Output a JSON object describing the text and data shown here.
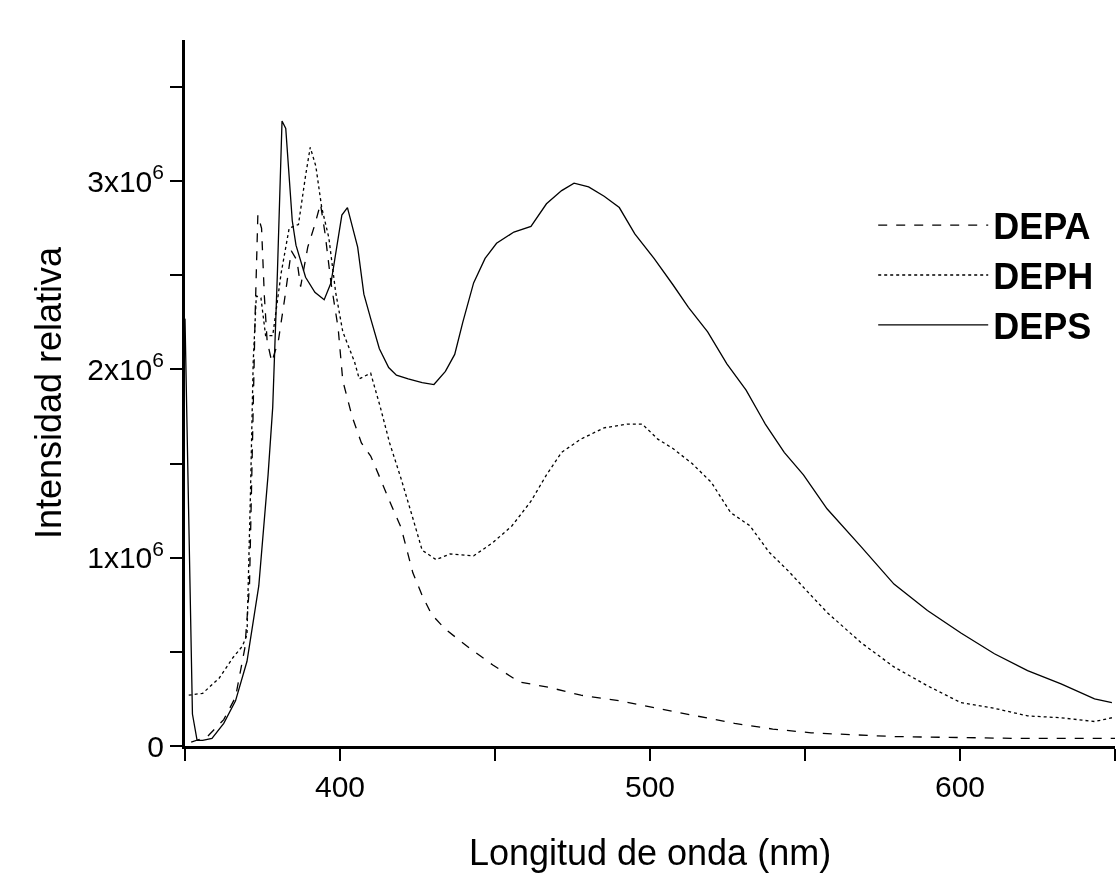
{
  "chart_data": {
    "type": "line",
    "xlabel": "Longitud de onda (nm)",
    "ylabel": "Intensidad relativa",
    "xlim": [
      350,
      650
    ],
    "xticks": [
      {
        "value": 350,
        "label": null
      },
      400,
      {
        "value": 450,
        "label": null
      },
      500,
      {
        "value": 550,
        "label": null
      },
      600,
      {
        "value": 650,
        "label": null
      }
    ],
    "ylim": [
      0,
      3750000
    ],
    "yticks": [
      {
        "value": 0,
        "label": "0"
      },
      {
        "value": 500000,
        "label": null
      },
      {
        "value": 1000000,
        "label": "1x10$^{6}$"
      },
      {
        "value": 1500000,
        "label": null
      },
      {
        "value": 2000000,
        "label": "2x10$^{6}$"
      },
      {
        "value": 2500000,
        "label": null
      },
      {
        "value": 3000000,
        "label": "3x10$^{6}$"
      },
      {
        "value": 3500000,
        "label": null
      }
    ],
    "legend": "right",
    "marker": "none",
    "series": [
      {
        "name": "DEPA",
        "color": "#000000",
        "line_style": "dashed",
        "x": [
          352,
          357.2,
          362.5,
          366.3,
          369.3,
          370.8,
          371.7,
          372.6,
          373.5,
          374.7,
          375.6,
          376.5,
          378,
          380.1,
          382.1,
          384.3,
          386.1,
          387.3,
          389.6,
          391.9,
          393.7,
          395.2,
          397.1,
          399.4,
          400.9,
          403.9,
          406.9,
          409.9,
          413,
          416,
          419.7,
          423.5,
          426.5,
          429.5,
          434,
          441.8,
          449.3,
          457.9,
          467.8,
          477.7,
          490.1,
          502.5,
          514.9,
          527.3,
          539.6,
          552,
          565,
          579,
          600,
          620,
          650
        ],
        "values": [
          20000,
          50000,
          140000,
          260000,
          520000,
          850000,
          1560000,
          2270000,
          2820000,
          2750000,
          2390000,
          2150000,
          2040000,
          2150000,
          2370000,
          2630000,
          2580000,
          2440000,
          2650000,
          2770000,
          2880000,
          2720000,
          2460000,
          2220000,
          1940000,
          1750000,
          1610000,
          1540000,
          1420000,
          1300000,
          1160000,
          920000,
          800000,
          700000,
          620000,
          520000,
          430000,
          340000,
          310000,
          270000,
          240000,
          200000,
          160000,
          120000,
          90000,
          70000,
          60000,
          50000,
          45000,
          40000,
          40000
        ]
      },
      {
        "name": "DEPH",
        "color": "#000000",
        "line_style": "dotted",
        "x": [
          351.2,
          355.7,
          361,
          365.5,
          368.5,
          370,
          371.1,
          372,
          373,
          374.5,
          376,
          378.3,
          381,
          383.6,
          386.6,
          388.9,
          390.4,
          392.2,
          394.1,
          396.4,
          398.6,
          400.9,
          404.7,
          406.2,
          409.9,
          413,
          416,
          419.7,
          423.5,
          426.5,
          431,
          435.5,
          443.1,
          449.3,
          455.5,
          461.6,
          466.6,
          471.5,
          477.7,
          485.2,
          492.6,
          497.5,
          502.5,
          507.4,
          513.6,
          519.8,
          526,
          532.2,
          538.4,
          544.6,
          550.8,
          557.1,
          568,
          578.7,
          589.5,
          600.3,
          611.1,
          621.8,
          632.6,
          643.4,
          649
        ],
        "values": [
          270000,
          280000,
          360000,
          470000,
          530000,
          590000,
          1330000,
          2040000,
          2390000,
          2380000,
          2180000,
          2180000,
          2510000,
          2750000,
          2770000,
          3030000,
          3180000,
          3080000,
          2860000,
          2700000,
          2410000,
          2200000,
          2040000,
          1950000,
          1980000,
          1800000,
          1610000,
          1420000,
          1210000,
          1040000,
          990000,
          1020000,
          1010000,
          1080000,
          1170000,
          1300000,
          1440000,
          1560000,
          1630000,
          1690000,
          1710000,
          1710000,
          1630000,
          1580000,
          1500000,
          1400000,
          1240000,
          1170000,
          1030000,
          930000,
          820000,
          710000,
          550000,
          420000,
          320000,
          230000,
          200000,
          160000,
          150000,
          130000,
          150000
        ]
      },
      {
        "name": "DEPS",
        "color": "#000000",
        "line_style": "solid",
        "x": [
          350,
          352.4,
          353.9,
          355.7,
          358.7,
          362.5,
          366.3,
          370,
          373.8,
          376.8,
          378.3,
          379.8,
          381.3,
          382.5,
          384.6,
          385.8,
          388.9,
          391.9,
          394.9,
          397.1,
          400.6,
          402.4,
          405.7,
          407.7,
          409.9,
          412.7,
          415.7,
          418.2,
          422,
          426.5,
          430.3,
          434,
          437,
          439.6,
          443.1,
          446.8,
          450.5,
          456.1,
          461.6,
          466.6,
          471.5,
          475.5,
          480.2,
          485.2,
          490.1,
          495.1,
          501.3,
          507.4,
          512.4,
          518.6,
          524.8,
          531,
          537.2,
          543.3,
          549.5,
          557.1,
          568,
          578.7,
          589.5,
          600.3,
          611.1,
          621.8,
          632.6,
          643.4,
          649
        ],
        "values": [
          2270000,
          170000,
          30000,
          30000,
          40000,
          120000,
          240000,
          450000,
          850000,
          1440000,
          1800000,
          2510000,
          3320000,
          3280000,
          2790000,
          2660000,
          2490000,
          2410000,
          2370000,
          2460000,
          2820000,
          2860000,
          2650000,
          2400000,
          2270000,
          2110000,
          2010000,
          1970000,
          1950000,
          1930000,
          1920000,
          1990000,
          2080000,
          2250000,
          2460000,
          2590000,
          2670000,
          2730000,
          2760000,
          2880000,
          2950000,
          2990000,
          2970000,
          2920000,
          2860000,
          2720000,
          2590000,
          2450000,
          2330000,
          2200000,
          2030000,
          1890000,
          1710000,
          1560000,
          1440000,
          1260000,
          1060000,
          860000,
          720000,
          600000,
          490000,
          400000,
          330000,
          250000,
          230000
        ]
      }
    ]
  }
}
